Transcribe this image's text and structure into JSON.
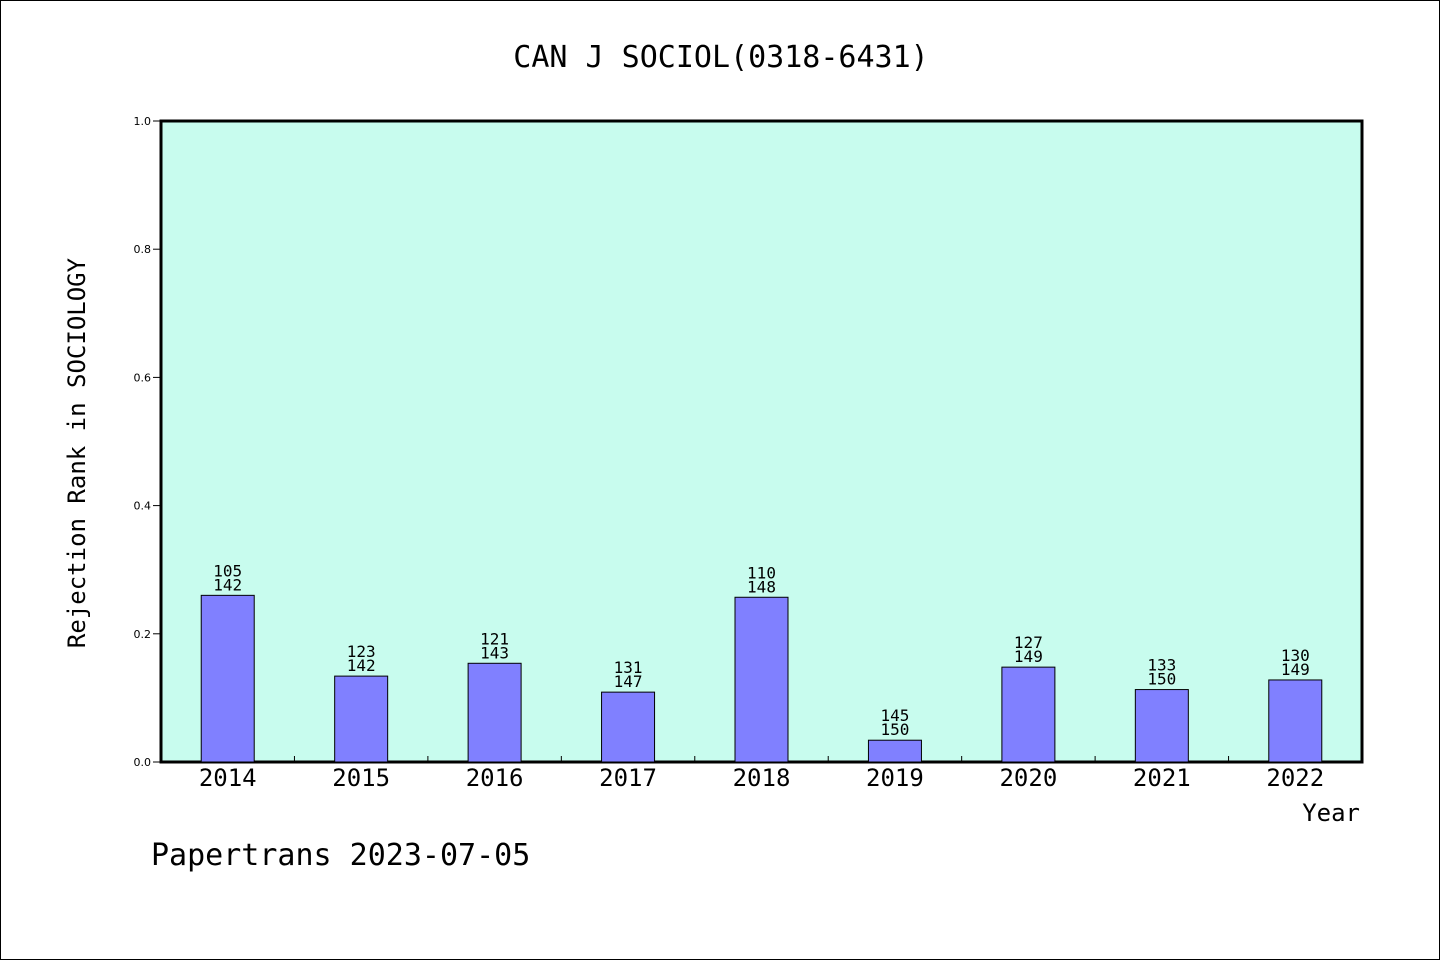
{
  "chart_data": {
    "type": "bar",
    "title": "CAN J SOCIOL(0318-6431)",
    "xlabel": "Year",
    "ylabel": "Rejection Rank in SOCIOLOGY",
    "ylim": [
      0,
      1.0
    ],
    "yticks": [
      "0.0",
      "0.2",
      "0.4",
      "0.6",
      "0.8",
      "1.0"
    ],
    "categories": [
      "2014",
      "2015",
      "2016",
      "2017",
      "2018",
      "2019",
      "2020",
      "2021",
      "2022"
    ],
    "values": [
      0.26,
      0.134,
      0.154,
      0.109,
      0.257,
      0.034,
      0.148,
      0.113,
      0.128
    ],
    "rank_labels": [
      "105",
      "123",
      "121",
      "131",
      "110",
      "145",
      "127",
      "133",
      "130"
    ],
    "total_labels": [
      "142",
      "142",
      "143",
      "147",
      "148",
      "150",
      "149",
      "150",
      "149"
    ],
    "grid": false,
    "colors": {
      "plot_bg": "#c8fcee",
      "bar": "#8080ff"
    }
  },
  "footer": "Papertrans 2023-07-05"
}
